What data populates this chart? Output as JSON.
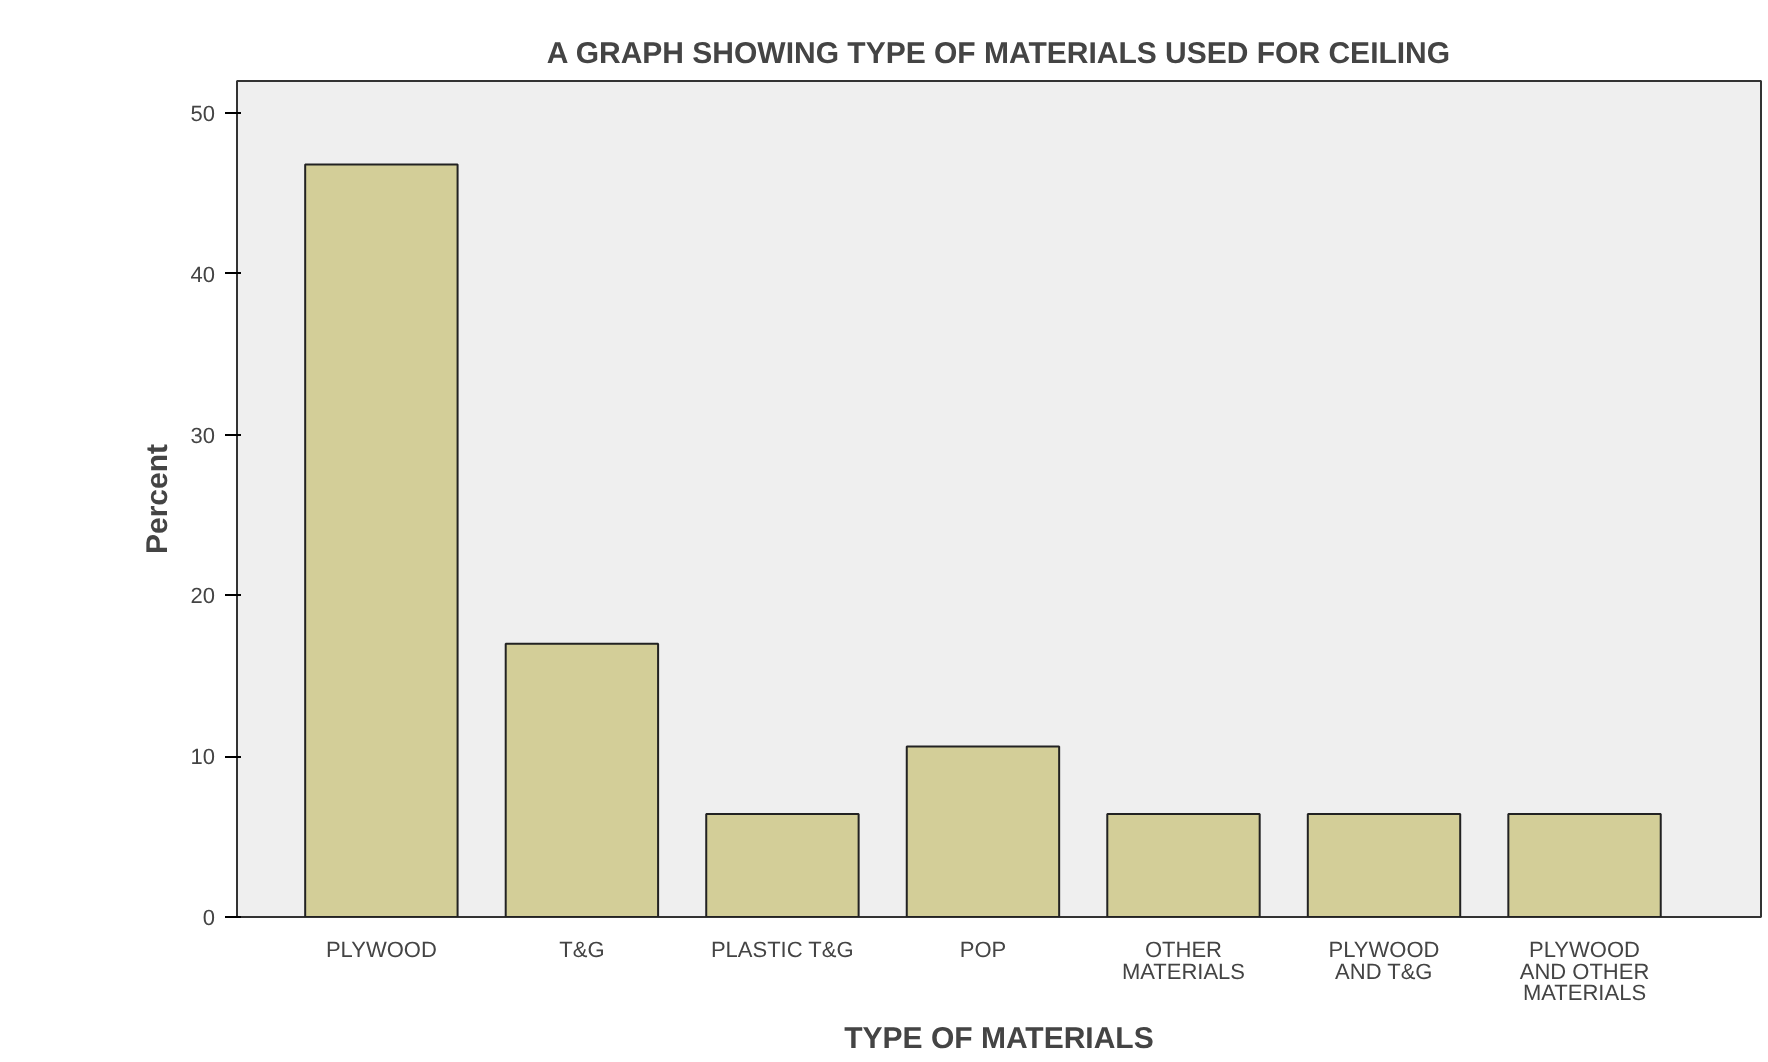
{
  "chart_data": {
    "type": "bar",
    "title": "A GRAPH SHOWING TYPE OF MATERIALS USED FOR CEILING",
    "xlabel": "TYPE OF MATERIALS",
    "ylabel": "Percent",
    "categories": [
      "PLYWOOD",
      "T&G",
      "PLASTIC T&G",
      "POP",
      "OTHER\nMATERIALS",
      "PLYWOOD\nAND T&G",
      "PLYWOOD\nAND OTHER\nMATERIALS"
    ],
    "values": [
      46.8,
      17.0,
      6.4,
      10.6,
      6.4,
      6.4,
      6.4
    ],
    "color": "#d3ce98",
    "ylim": [
      0,
      52
    ],
    "yticks": [
      0,
      10,
      20,
      30,
      40,
      50
    ],
    "grid": false
  }
}
